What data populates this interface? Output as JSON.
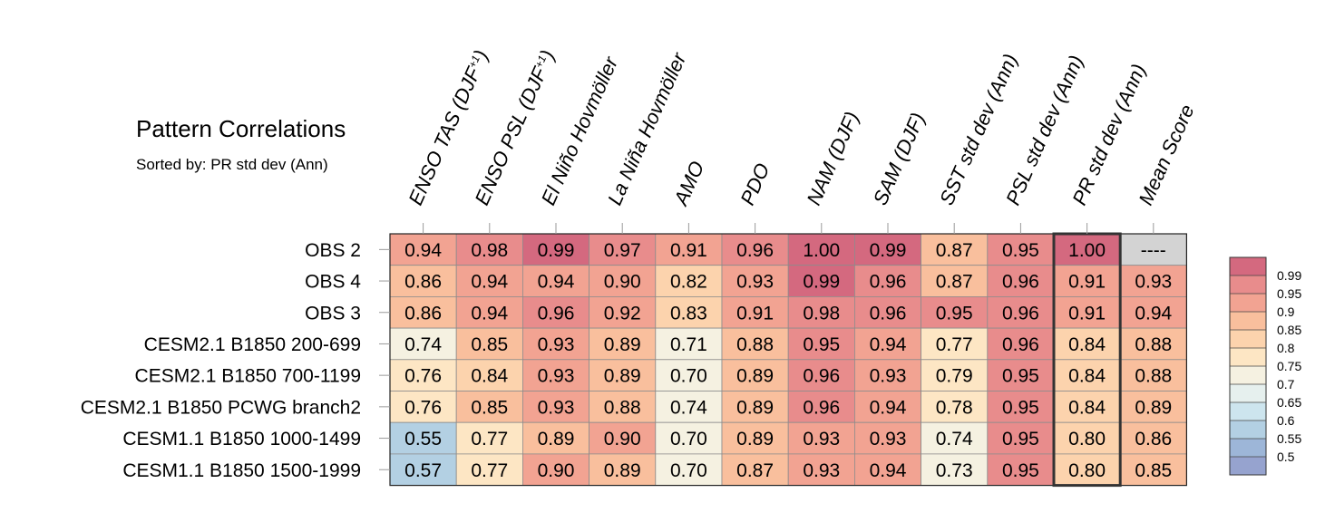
{
  "chart_data": {
    "type": "heatmap",
    "title": "Pattern Correlations",
    "subtitle": "Sorted by: PR std dev (Ann)",
    "columns": [
      {
        "label": "ENSO TAS (DJF",
        "sup": "+1",
        "suffix": ")"
      },
      {
        "label": "ENSO PSL (DJF",
        "sup": "+1",
        "suffix": ")"
      },
      {
        "label": "El Niño Hovmöller"
      },
      {
        "label": "La Niña Hovmöller"
      },
      {
        "label": "AMO"
      },
      {
        "label": "PDO"
      },
      {
        "label": "NAM (DJF)"
      },
      {
        "label": "SAM (DJF)"
      },
      {
        "label": "SST std dev (Ann)"
      },
      {
        "label": "PSL std dev (Ann)"
      },
      {
        "label": "PR std dev (Ann)"
      },
      {
        "label": "Mean Score"
      }
    ],
    "rows": [
      {
        "label": "OBS 2",
        "values": [
          "0.94",
          "0.98",
          "0.99",
          "0.97",
          "0.91",
          "0.96",
          "1.00",
          "0.99",
          "0.87",
          "0.95",
          "1.00",
          "----"
        ]
      },
      {
        "label": "OBS 4",
        "values": [
          "0.86",
          "0.94",
          "0.94",
          "0.90",
          "0.82",
          "0.93",
          "0.99",
          "0.96",
          "0.87",
          "0.96",
          "0.91",
          "0.93"
        ]
      },
      {
        "label": "OBS 3",
        "values": [
          "0.86",
          "0.94",
          "0.96",
          "0.92",
          "0.83",
          "0.91",
          "0.98",
          "0.96",
          "0.95",
          "0.96",
          "0.91",
          "0.94"
        ]
      },
      {
        "label": "CESM2.1 B1850 200-699",
        "values": [
          "0.74",
          "0.85",
          "0.93",
          "0.89",
          "0.71",
          "0.88",
          "0.95",
          "0.94",
          "0.77",
          "0.96",
          "0.84",
          "0.88"
        ]
      },
      {
        "label": "CESM2.1 B1850 700-1199",
        "values": [
          "0.76",
          "0.84",
          "0.93",
          "0.89",
          "0.70",
          "0.89",
          "0.96",
          "0.93",
          "0.79",
          "0.95",
          "0.84",
          "0.88"
        ]
      },
      {
        "label": "CESM2.1 B1850 PCWG branch2",
        "values": [
          "0.76",
          "0.85",
          "0.93",
          "0.88",
          "0.74",
          "0.89",
          "0.96",
          "0.94",
          "0.78",
          "0.95",
          "0.84",
          "0.89"
        ]
      },
      {
        "label": "CESM1.1 B1850 1000-1499",
        "values": [
          "0.55",
          "0.77",
          "0.89",
          "0.90",
          "0.70",
          "0.89",
          "0.93",
          "0.93",
          "0.74",
          "0.95",
          "0.80",
          "0.86"
        ]
      },
      {
        "label": "CESM1.1 B1850 1500-1999",
        "values": [
          "0.57",
          "0.77",
          "0.90",
          "0.89",
          "0.70",
          "0.87",
          "0.93",
          "0.94",
          "0.73",
          "0.95",
          "0.80",
          "0.85"
        ]
      }
    ],
    "sorted_column": "PR std dev (Ann)",
    "missing_color": "#d3d3d3",
    "colorbar": {
      "levels": [
        "0.99",
        "0.95",
        "0.9",
        "0.85",
        "0.8",
        "0.75",
        "0.7",
        "0.65",
        "0.6",
        "0.55",
        "0.5"
      ],
      "colors": [
        "#d4697f",
        "#e88c8c",
        "#f2a392",
        "#f9bf9d",
        "#fcd3ad",
        "#fde6c4",
        "#f5f1e1",
        "#e6f0ee",
        "#cde5ee",
        "#b3d0e3",
        "#9db6d8",
        "#96a3cf"
      ]
    }
  }
}
